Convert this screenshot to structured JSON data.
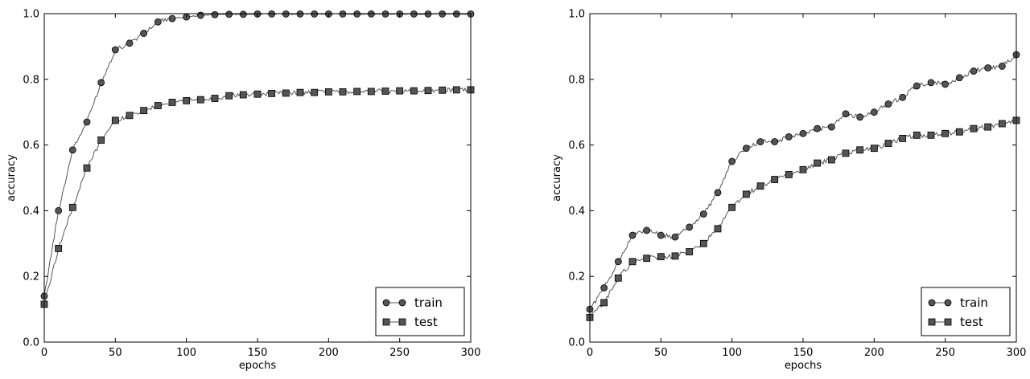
{
  "chart_data": [
    {
      "type": "line",
      "xlabel": "epochs",
      "ylabel": "accuracy",
      "xlim": [
        0,
        300
      ],
      "ylim": [
        0.0,
        1.0
      ],
      "xticks": [
        "0",
        "50",
        "100",
        "150",
        "200",
        "250",
        "300"
      ],
      "yticks": [
        "0.0",
        "0.2",
        "0.4",
        "0.6",
        "0.8",
        "1.0"
      ],
      "grid": false,
      "legend_position": "bottom-right",
      "x": [
        0,
        10,
        20,
        30,
        40,
        50,
        60,
        70,
        80,
        90,
        100,
        110,
        120,
        130,
        140,
        150,
        160,
        170,
        180,
        190,
        200,
        210,
        220,
        230,
        240,
        250,
        260,
        270,
        280,
        290,
        300
      ],
      "series": [
        {
          "name": "train",
          "marker": "circle",
          "values": [
            0.14,
            0.4,
            0.585,
            0.67,
            0.79,
            0.89,
            0.91,
            0.94,
            0.975,
            0.985,
            0.99,
            0.995,
            0.997,
            0.998,
            0.998,
            0.999,
            0.999,
            0.999,
            0.999,
            0.999,
            0.999,
            0.999,
            0.999,
            0.999,
            0.999,
            0.999,
            0.999,
            0.999,
            0.999,
            0.999,
            0.999
          ]
        },
        {
          "name": "test",
          "marker": "square",
          "values": [
            0.115,
            0.285,
            0.41,
            0.53,
            0.615,
            0.675,
            0.69,
            0.705,
            0.72,
            0.73,
            0.735,
            0.738,
            0.742,
            0.75,
            0.753,
            0.755,
            0.757,
            0.758,
            0.76,
            0.76,
            0.762,
            0.762,
            0.763,
            0.763,
            0.764,
            0.765,
            0.765,
            0.766,
            0.767,
            0.768,
            0.768
          ]
        }
      ]
    },
    {
      "type": "line",
      "xlabel": "epochs",
      "ylabel": "accuracy",
      "xlim": [
        0,
        300
      ],
      "ylim": [
        0.0,
        1.0
      ],
      "xticks": [
        "0",
        "50",
        "100",
        "150",
        "200",
        "250",
        "300"
      ],
      "yticks": [
        "0.0",
        "0.2",
        "0.4",
        "0.6",
        "0.8",
        "1.0"
      ],
      "grid": false,
      "legend_position": "bottom-right",
      "x": [
        0,
        10,
        20,
        30,
        40,
        50,
        60,
        70,
        80,
        90,
        100,
        110,
        120,
        130,
        140,
        150,
        160,
        170,
        180,
        190,
        200,
        210,
        220,
        230,
        240,
        250,
        260,
        270,
        280,
        290,
        300
      ],
      "series": [
        {
          "name": "train",
          "marker": "circle",
          "values": [
            0.1,
            0.165,
            0.245,
            0.325,
            0.34,
            0.325,
            0.32,
            0.35,
            0.39,
            0.455,
            0.55,
            0.59,
            0.61,
            0.61,
            0.625,
            0.635,
            0.65,
            0.655,
            0.695,
            0.685,
            0.7,
            0.725,
            0.745,
            0.78,
            0.79,
            0.785,
            0.805,
            0.825,
            0.835,
            0.84,
            0.875
          ]
        },
        {
          "name": "test",
          "marker": "square",
          "values": [
            0.075,
            0.12,
            0.195,
            0.245,
            0.255,
            0.26,
            0.262,
            0.275,
            0.3,
            0.345,
            0.41,
            0.45,
            0.475,
            0.495,
            0.51,
            0.525,
            0.545,
            0.555,
            0.575,
            0.585,
            0.59,
            0.605,
            0.62,
            0.63,
            0.63,
            0.635,
            0.64,
            0.65,
            0.655,
            0.665,
            0.675
          ]
        }
      ]
    }
  ],
  "colors": {
    "series_line": "#555555",
    "marker_fill": "#555555",
    "marker_edge": "#000000",
    "axis": "#000000",
    "background": "#ffffff"
  }
}
